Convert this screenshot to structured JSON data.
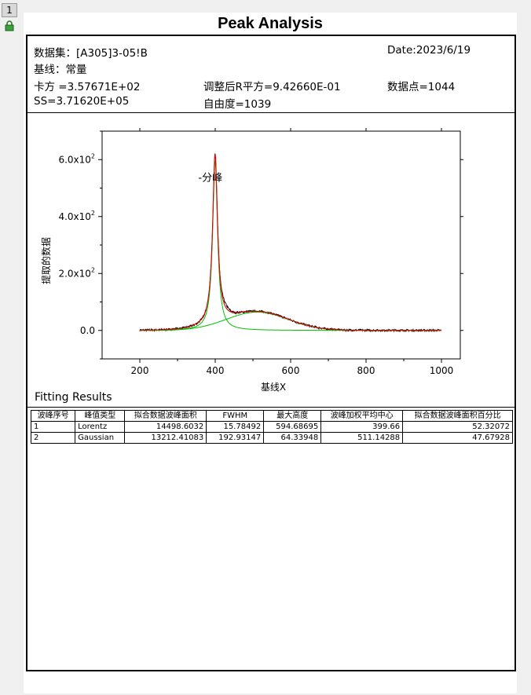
{
  "page_tab": "1",
  "report": {
    "title": "Peak Analysis",
    "dataset": "数据集：[A305]3-05!B",
    "date": "Date:2023/6/19",
    "baseline": "基线：常量",
    "chi_sq": "卡方 =3.57671E+02",
    "adj_r_sq": "调整后R平方=9.42660E-01",
    "data_points": "数据点=1044",
    "ss": "SS=3.71620E+05",
    "dof": "自由度=1039"
  },
  "chart_data": {
    "type": "line",
    "xlabel": "基线X",
    "ylabel": "提取的数据",
    "xlim": [
      100,
      1050
    ],
    "ylim": [
      -100,
      700
    ],
    "x_ticks": [
      200,
      400,
      600,
      800,
      1000
    ],
    "y_ticks": [
      {
        "value": 0,
        "label": "0.0"
      },
      {
        "value": 200,
        "label": "2.0x10",
        "exp": "2"
      },
      {
        "value": 400,
        "label": "4.0x10",
        "exp": "2"
      },
      {
        "value": 600,
        "label": "6.0x10",
        "exp": "2"
      }
    ],
    "annotation": {
      "text": "-分峰",
      "x": 355,
      "y": 525
    },
    "baseline": 0,
    "peaks": [
      {
        "type": "Lorentz",
        "center": 399.66,
        "height": 594.68695,
        "fwhm": 15.78492
      },
      {
        "type": "Gaussian",
        "center": 511.14288,
        "height": 64.33948,
        "fwhm": 192.93147
      }
    ],
    "data_range": [
      200,
      1000
    ],
    "colors": {
      "data": "#000000",
      "cumulative": "#e00000",
      "peak": "#00c000"
    }
  },
  "fitting": {
    "label": "Fitting Results",
    "headers": [
      "波峰序号",
      "峰值类型",
      "拟合数据波峰面积",
      "FWHM",
      "最大高度",
      "波峰加权平均中心",
      "拟合数据波峰面积百分比"
    ],
    "rows": [
      [
        "1",
        "Lorentz",
        "14498.6032",
        "15.78492",
        "594.68695",
        "399.66",
        "52.32072"
      ],
      [
        "2",
        "Gaussian",
        "13212.41083",
        "192.93147",
        "64.33948",
        "511.14288",
        "47.67928"
      ]
    ]
  }
}
